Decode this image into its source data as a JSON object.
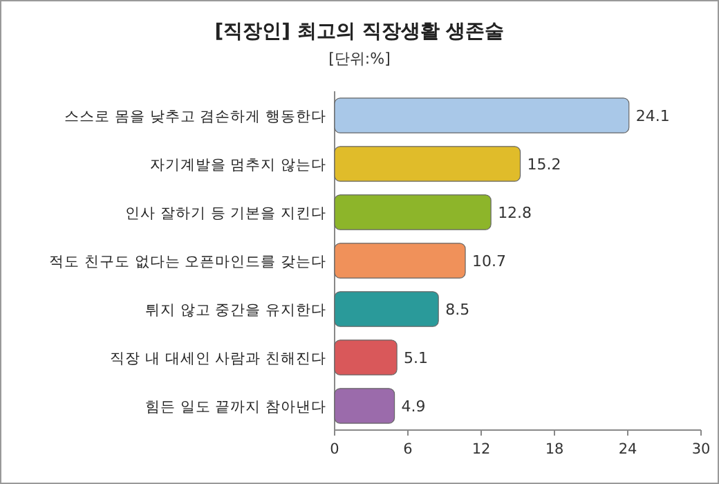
{
  "chart_data": {
    "type": "bar",
    "orientation": "horizontal",
    "title": "[직장인] 최고의 직장생활 생존술",
    "subtitle": "[단위:%]",
    "categories": [
      "스스로 몸을 낮추고 겸손하게 행동한다",
      "자기계발을 멈추지 않는다",
      "인사 잘하기 등 기본을 지킨다",
      "적도 친구도 없다는 오픈마인드를 갖는다",
      "튀지 않고 중간을 유지한다",
      "직장 내 대세인 사람과 친해진다",
      "힘든 일도 끝까지 참아낸다"
    ],
    "values": [
      24.1,
      15.2,
      12.8,
      10.7,
      8.5,
      5.1,
      4.9
    ],
    "colors": [
      "#a9c8e8",
      "#e0bc2a",
      "#8db52a",
      "#f0915a",
      "#2a9a9a",
      "#d9585a",
      "#9b6bab"
    ],
    "xlim": [
      0,
      30
    ],
    "xticks": [
      0,
      6,
      12,
      18,
      24,
      30
    ],
    "data_labels": true
  }
}
